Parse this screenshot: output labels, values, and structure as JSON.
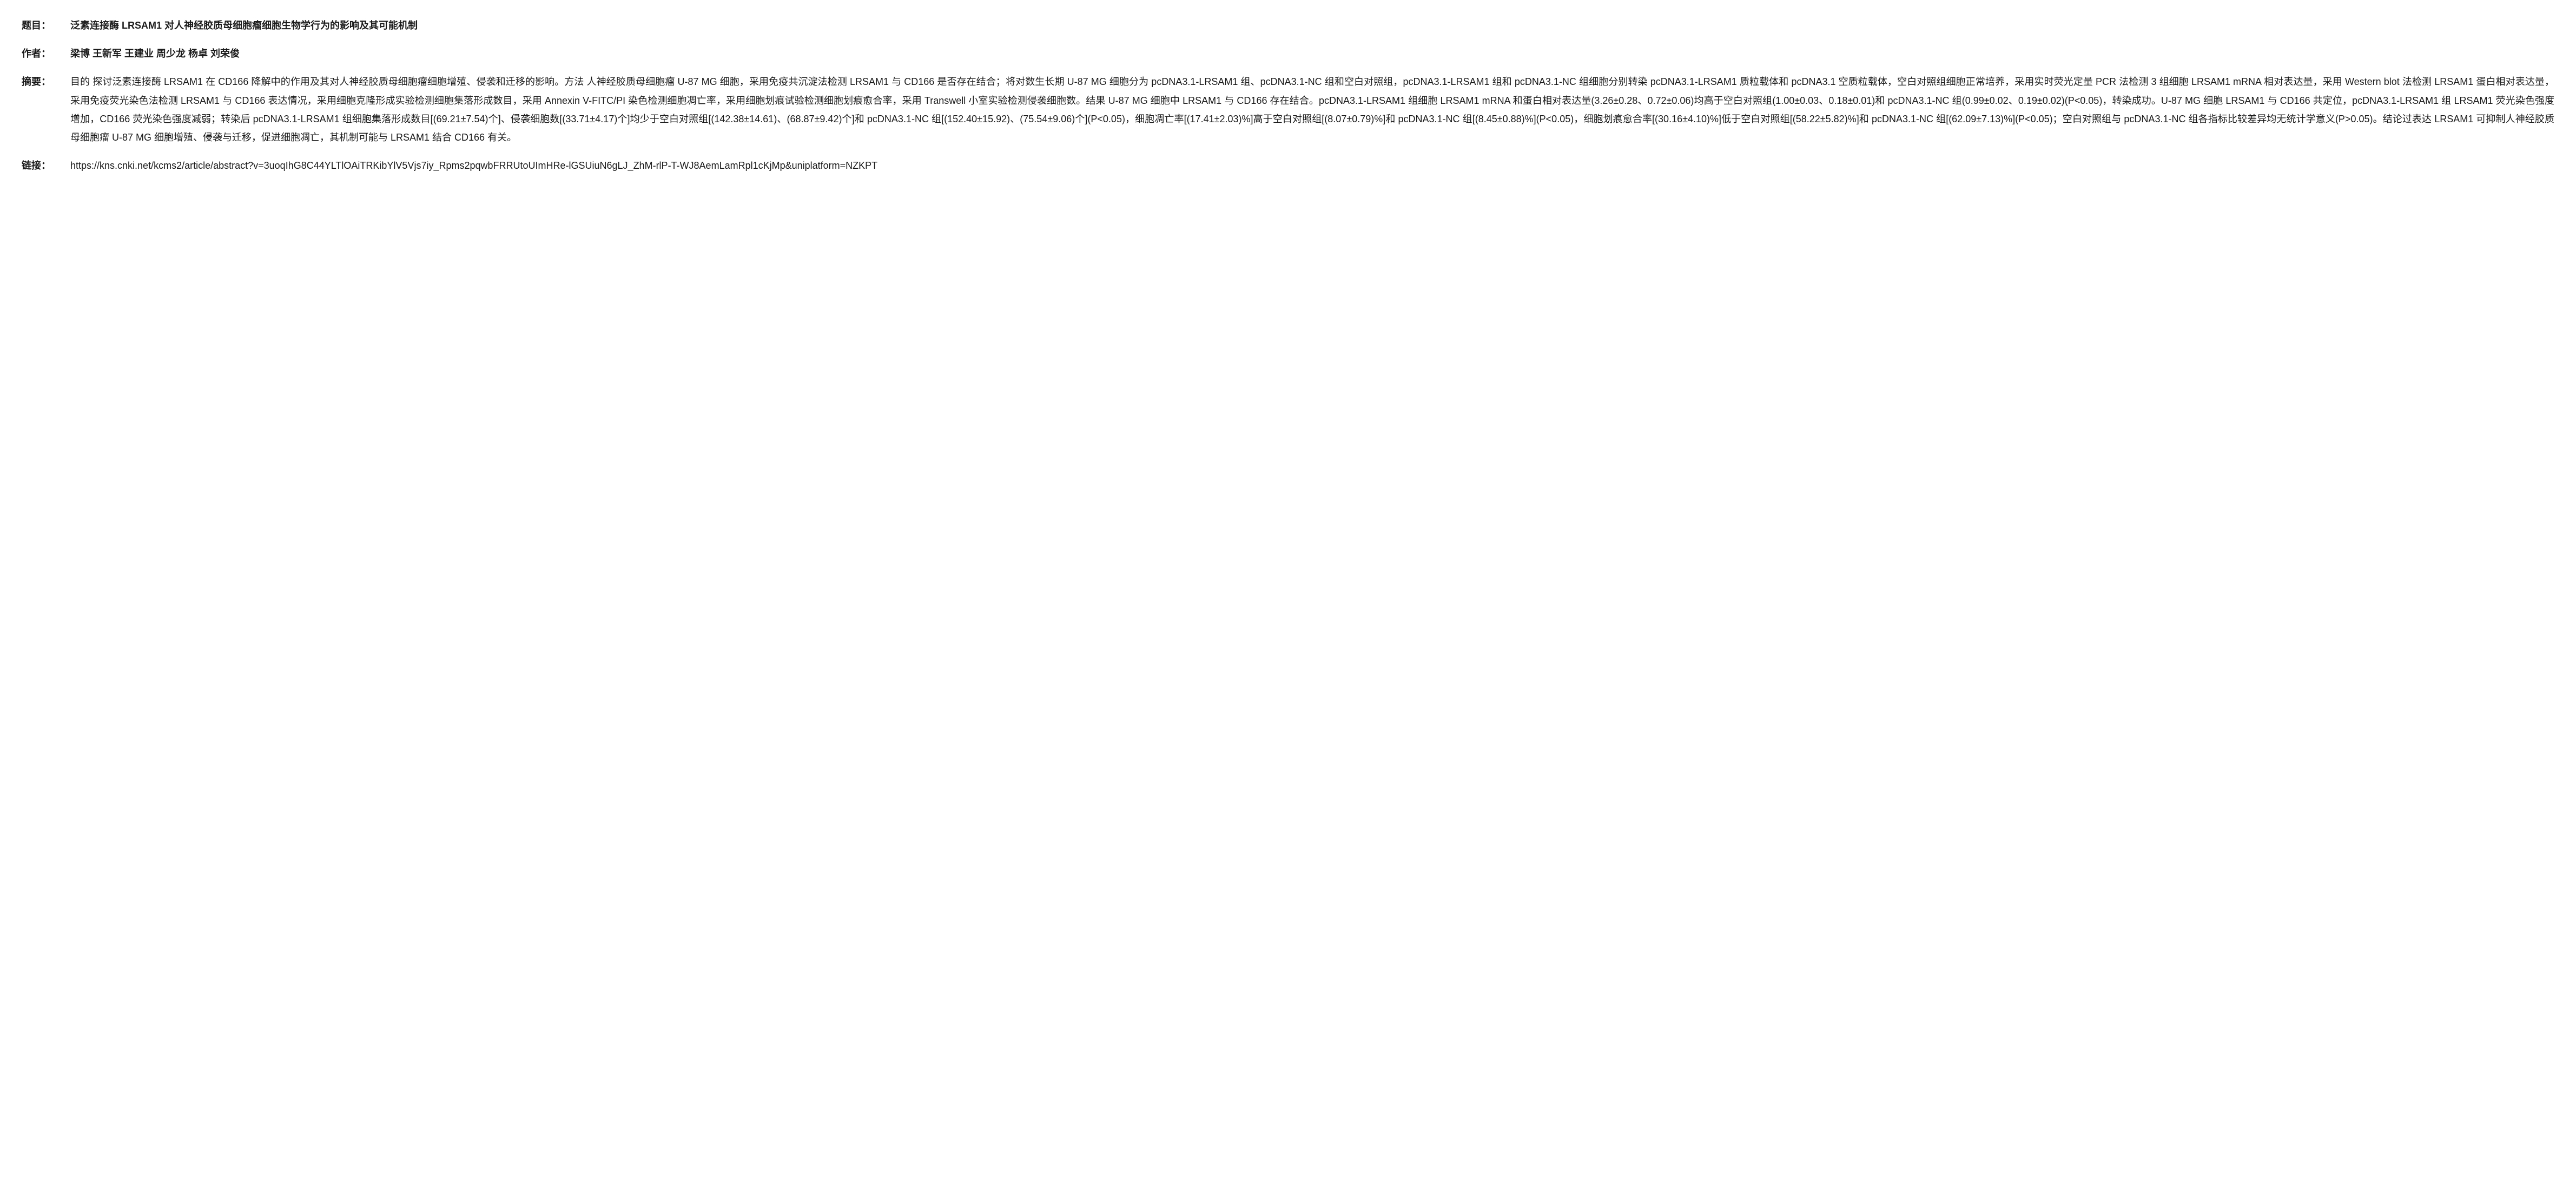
{
  "labels": {
    "title": "题目：",
    "authors": "作者：",
    "abstract": "摘要：",
    "link": "链接："
  },
  "title": "泛素连接酶 LRSAM1 对人神经胶质母细胞瘤细胞生物学行为的影响及其可能机制",
  "authors": "梁博  王新军  王建业  周少龙  杨卓  刘荣俊",
  "abstract": "目的  探讨泛素连接酶 LRSAM1 在 CD166 降解中的作用及其对人神经胶质母细胞瘤细胞增殖、侵袭和迁移的影响。方法  人神经胶质母细胞瘤 U-87 MG 细胞，采用免疫共沉淀法检测 LRSAM1 与 CD166 是否存在结合；将对数生长期 U-87 MG 细胞分为 pcDNA3.1-LRSAM1 组、pcDNA3.1-NC 组和空白对照组，pcDNA3.1-LRSAM1 组和 pcDNA3.1-NC 组细胞分别转染 pcDNA3.1-LRSAM1 质粒载体和 pcDNA3.1 空质粒载体，空白对照组细胞正常培养，采用实时荧光定量 PCR 法检测 3 组细胞 LRSAM1 mRNA 相对表达量，采用 Western blot 法检测 LRSAM1 蛋白相对表达量，采用免疫荧光染色法检测 LRSAM1 与 CD166 表达情况，采用细胞克隆形成实验检测细胞集落形成数目，采用 Annexin V-FITC/PI 染色检测细胞凋亡率，采用细胞划痕试验检测细胞划痕愈合率，采用 Transwell 小室实验检测侵袭细胞数。结果  U-87 MG 细胞中 LRSAM1 与 CD166 存在结合。pcDNA3.1-LRSAM1 组细胞 LRSAM1 mRNA 和蛋白相对表达量(3.26±0.28、0.72±0.06)均高于空白对照组(1.00±0.03、0.18±0.01)和 pcDNA3.1-NC 组(0.99±0.02、0.19±0.02)(P<0.05)，转染成功。U-87 MG 细胞 LRSAM1 与 CD166 共定位，pcDNA3.1-LRSAM1 组 LRSAM1 荧光染色强度增加，CD166 荧光染色强度减弱；转染后 pcDNA3.1-LRSAM1 组细胞集落形成数目[(69.21±7.54)个]、侵袭细胞数[(33.71±4.17)个]均少于空白对照组[(142.38±14.61)、(68.87±9.42)个]和 pcDNA3.1-NC 组[(152.40±15.92)、(75.54±9.06)个](P<0.05)，细胞凋亡率[(17.41±2.03)%]高于空白对照组[(8.07±0.79)%]和 pcDNA3.1-NC 组[(8.45±0.88)%](P<0.05)，细胞划痕愈合率[(30.16±4.10)%]低于空白对照组[(58.22±5.82)%]和 pcDNA3.1-NC 组[(62.09±7.13)%](P<0.05)；空白对照组与 pcDNA3.1-NC 组各指标比较差异均无统计学意义(P>0.05)。结论过表达 LRSAM1 可抑制人神经胶质母细胞瘤 U-87 MG 细胞增殖、侵袭与迁移，促进细胞凋亡，其机制可能与 LRSAM1 结合 CD166 有关。",
  "link": "https://kns.cnki.net/kcms2/article/abstract?v=3uoqIhG8C44YLTlOAiTRKibYlV5Vjs7iy_Rpms2pqwbFRRUtoUImHRe-lGSUiuN6gLJ_ZhM-rlP-T-WJ8AemLamRpl1cKjMp&uniplatform=NZKPT",
  "styling": {
    "background_color": "#ffffff",
    "text_color": "#1a1a1a",
    "label_font_weight": 700,
    "title_font_weight": 700,
    "authors_font_weight": 700,
    "body_font_weight": 400,
    "font_size": 18,
    "line_height": 1.9,
    "label_width": 90,
    "font_family": "Microsoft YaHei, PingFang SC, Helvetica Neue, Arial, sans-serif"
  }
}
